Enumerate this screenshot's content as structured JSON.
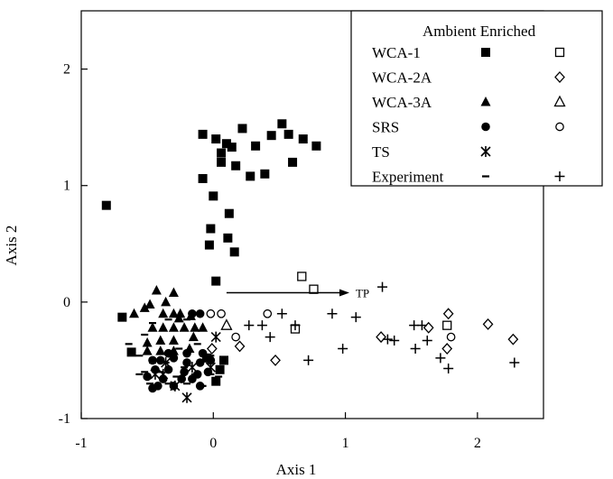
{
  "chart_data": {
    "type": "scatter",
    "title": "",
    "xlabel": "Axis 1",
    "ylabel": "Axis 2",
    "xlim": [
      -1,
      2.5
    ],
    "ylim": [
      -1,
      2.5
    ],
    "x_ticks": [
      -1,
      0,
      1,
      2
    ],
    "y_ticks": [
      -1,
      0,
      1,
      2
    ],
    "grid": false,
    "legend_position": "top-right",
    "legend_header": "Ambient Enriched",
    "legend_rows": [
      {
        "label": "WCA-1",
        "ambient": "filled-square",
        "enriched": "open-square"
      },
      {
        "label": "WCA-2A",
        "ambient": "",
        "enriched": "open-diamond"
      },
      {
        "label": "WCA-3A",
        "ambient": "filled-triangle",
        "enriched": "open-triangle"
      },
      {
        "label": "SRS",
        "ambient": "filled-circle",
        "enriched": "open-circle"
      },
      {
        "label": "TS",
        "ambient": "asterisk",
        "enriched": ""
      },
      {
        "label": "Experiment",
        "ambient": "dash",
        "enriched": "plus"
      }
    ],
    "annotation": {
      "text": "TP",
      "x_start": 0.1,
      "y_start": 0.08,
      "x_end": 1.03,
      "y_end": 0.08
    },
    "series": [
      {
        "marker": "filled-square",
        "points": [
          [
            -0.81,
            0.83
          ],
          [
            -0.69,
            -0.13
          ],
          [
            -0.62,
            -0.43
          ],
          [
            -0.08,
            1.44
          ],
          [
            0.02,
            1.4
          ],
          [
            0.06,
            1.28
          ],
          [
            0.1,
            1.36
          ],
          [
            0.14,
            1.33
          ],
          [
            0.22,
            1.49
          ],
          [
            0.32,
            1.34
          ],
          [
            0.39,
            1.1
          ],
          [
            0.44,
            1.43
          ],
          [
            0.52,
            1.53
          ],
          [
            0.57,
            1.44
          ],
          [
            0.6,
            1.2
          ],
          [
            0.68,
            1.4
          ],
          [
            0.78,
            1.34
          ],
          [
            0.06,
            1.2
          ],
          [
            0.17,
            1.17
          ],
          [
            0.28,
            1.08
          ],
          [
            -0.08,
            1.06
          ],
          [
            0,
            0.91
          ],
          [
            0.12,
            0.76
          ],
          [
            -0.02,
            0.63
          ],
          [
            0.11,
            0.55
          ],
          [
            -0.03,
            0.49
          ],
          [
            0.16,
            0.43
          ],
          [
            0.02,
            0.18
          ],
          [
            0.08,
            -0.5
          ],
          [
            -0.05,
            -0.48
          ],
          [
            0.05,
            -0.58
          ],
          [
            0.02,
            -0.68
          ]
        ]
      },
      {
        "marker": "open-square",
        "points": [
          [
            0.67,
            0.22
          ],
          [
            0.76,
            0.11
          ],
          [
            0.62,
            -0.23
          ],
          [
            1.77,
            -0.2
          ]
        ]
      },
      {
        "marker": "open-diamond",
        "points": [
          [
            0.47,
            -0.5
          ],
          [
            1.27,
            -0.3
          ],
          [
            1.63,
            -0.22
          ],
          [
            1.78,
            -0.1
          ],
          [
            2.08,
            -0.19
          ],
          [
            2.27,
            -0.32
          ],
          [
            1.77,
            -0.4
          ],
          [
            -0.01,
            -0.4
          ],
          [
            0.2,
            -0.38
          ]
        ]
      },
      {
        "marker": "filled-triangle",
        "points": [
          [
            -0.6,
            -0.1
          ],
          [
            -0.48,
            -0.02
          ],
          [
            -0.43,
            0.1
          ],
          [
            -0.3,
            0.08
          ],
          [
            -0.38,
            -0.1
          ],
          [
            -0.3,
            -0.1
          ],
          [
            -0.25,
            -0.1
          ],
          [
            -0.17,
            -0.12
          ],
          [
            -0.46,
            -0.22
          ],
          [
            -0.38,
            -0.22
          ],
          [
            -0.3,
            -0.22
          ],
          [
            -0.22,
            -0.22
          ],
          [
            -0.14,
            -0.22
          ],
          [
            -0.08,
            -0.22
          ],
          [
            -0.5,
            -0.35
          ],
          [
            -0.4,
            -0.33
          ],
          [
            -0.3,
            -0.33
          ],
          [
            -0.15,
            -0.3
          ],
          [
            -0.5,
            -0.42
          ],
          [
            -0.4,
            -0.42
          ],
          [
            -0.3,
            -0.42
          ],
          [
            -0.18,
            -0.4
          ],
          [
            -0.26,
            -0.14
          ],
          [
            -0.36,
            0.0
          ],
          [
            -0.52,
            -0.05
          ]
        ]
      },
      {
        "marker": "open-triangle",
        "points": [
          [
            0.1,
            -0.2
          ]
        ]
      },
      {
        "marker": "filled-circle",
        "points": [
          [
            -0.1,
            -0.1
          ],
          [
            -0.16,
            -0.1
          ],
          [
            -0.46,
            -0.5
          ],
          [
            -0.4,
            -0.5
          ],
          [
            -0.3,
            -0.48
          ],
          [
            -0.2,
            -0.52
          ],
          [
            -0.1,
            -0.52
          ],
          [
            -0.44,
            -0.58
          ],
          [
            -0.34,
            -0.58
          ],
          [
            -0.22,
            -0.6
          ],
          [
            -0.12,
            -0.62
          ],
          [
            -0.04,
            -0.6
          ],
          [
            -0.5,
            -0.64
          ],
          [
            -0.38,
            -0.66
          ],
          [
            -0.24,
            -0.66
          ],
          [
            -0.16,
            -0.66
          ],
          [
            -0.42,
            -0.72
          ],
          [
            -0.3,
            -0.72
          ],
          [
            -0.1,
            -0.72
          ],
          [
            -0.02,
            -0.5
          ],
          [
            -0.2,
            -0.44
          ],
          [
            -0.46,
            -0.74
          ],
          [
            -0.08,
            -0.44
          ],
          [
            -0.34,
            -0.44
          ]
        ]
      },
      {
        "marker": "open-circle",
        "points": [
          [
            -0.02,
            -0.1
          ],
          [
            0.06,
            -0.1
          ],
          [
            0.17,
            -0.3
          ],
          [
            0.41,
            -0.1
          ],
          [
            1.8,
            -0.3
          ]
        ]
      },
      {
        "marker": "asterisk",
        "points": [
          [
            0.02,
            -0.3
          ],
          [
            -0.36,
            -0.52
          ],
          [
            -0.29,
            -0.72
          ],
          [
            -0.2,
            -0.82
          ],
          [
            -0.44,
            -0.62
          ],
          [
            -0.16,
            -0.56
          ],
          [
            -0.02,
            -0.56
          ],
          [
            -0.38,
            -0.62
          ]
        ]
      },
      {
        "marker": "dash",
        "points": [
          [
            -0.64,
            -0.36
          ],
          [
            -0.52,
            -0.28
          ],
          [
            -0.46,
            -0.18
          ],
          [
            -0.34,
            -0.15
          ],
          [
            -0.2,
            -0.15
          ],
          [
            -0.12,
            -0.36
          ],
          [
            -0.26,
            -0.4
          ],
          [
            -0.56,
            -0.46
          ],
          [
            -0.46,
            -0.52
          ],
          [
            -0.36,
            -0.52
          ],
          [
            -0.22,
            -0.56
          ],
          [
            -0.52,
            -0.6
          ],
          [
            -0.4,
            -0.6
          ],
          [
            -0.28,
            -0.64
          ],
          [
            -0.14,
            -0.62
          ],
          [
            -0.02,
            -0.62
          ],
          [
            -0.48,
            -0.7
          ],
          [
            -0.34,
            -0.7
          ],
          [
            -0.2,
            -0.7
          ],
          [
            -0.08,
            -0.72
          ],
          [
            0.04,
            -0.64
          ],
          [
            -0.56,
            -0.62
          ],
          [
            -0.02,
            -0.46
          ]
        ]
      },
      {
        "marker": "plus",
        "points": [
          [
            0.27,
            -0.2
          ],
          [
            0.37,
            -0.2
          ],
          [
            0.43,
            -0.3
          ],
          [
            0.52,
            -0.1
          ],
          [
            0.62,
            -0.2
          ],
          [
            0.72,
            -0.5
          ],
          [
            0.9,
            -0.1
          ],
          [
            0.98,
            -0.4
          ],
          [
            1.08,
            -0.13
          ],
          [
            1.28,
            0.13
          ],
          [
            1.32,
            -0.32
          ],
          [
            1.37,
            -0.33
          ],
          [
            1.52,
            -0.2
          ],
          [
            1.53,
            -0.4
          ],
          [
            1.62,
            -0.33
          ],
          [
            1.72,
            -0.48
          ],
          [
            1.78,
            -0.57
          ],
          [
            2.28,
            -0.52
          ],
          [
            1.58,
            -0.2
          ]
        ]
      }
    ]
  }
}
